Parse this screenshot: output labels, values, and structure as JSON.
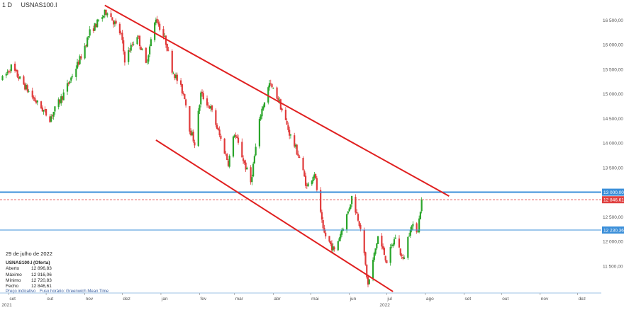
{
  "header": {
    "timeframe": "1 D",
    "symbol": "USNAS100.I"
  },
  "info_panel": {
    "date": "29 de julho de 2022",
    "instrument": "USNAS100.I (Oferta)",
    "rows": [
      {
        "label": "Aberto",
        "value": "12 896,83"
      },
      {
        "label": "Máximo",
        "value": "12 916,06"
      },
      {
        "label": "Mínimo",
        "value": "12 720,83"
      },
      {
        "label": "Fecho",
        "value": "12 846,61"
      }
    ],
    "footer": [
      "Preço indicativo",
      "Fuso horário: Greenwich Mean Time"
    ]
  },
  "colors": {
    "up": "#2aa52a",
    "down": "#e03b3b",
    "trendline": "#e02020",
    "hline_blue": "#3b8fd9",
    "price_dash": "#e04040",
    "axis_text": "#555555"
  },
  "chart_data": {
    "type": "candlestick",
    "instrument": "USNAS100.I",
    "timeframe": "1 D",
    "x_ticks": [
      {
        "label": "set",
        "date": "2021-09-01"
      },
      {
        "label": "out",
        "date": "2021-10-01"
      },
      {
        "label": "nov",
        "date": "2021-11-01"
      },
      {
        "label": "dez",
        "date": "2021-12-01"
      },
      {
        "label": "jan",
        "date": "2022-01-01"
      },
      {
        "label": "fev",
        "date": "2022-02-01"
      },
      {
        "label": "mar",
        "date": "2022-03-01"
      },
      {
        "label": "abr",
        "date": "2022-04-01"
      },
      {
        "label": "mai",
        "date": "2022-05-01"
      },
      {
        "label": "jun",
        "date": "2022-06-01"
      },
      {
        "label": "jul",
        "date": "2022-07-01"
      },
      {
        "label": "ago",
        "date": "2022-08-01"
      },
      {
        "label": "set",
        "date": "2022-09-01"
      },
      {
        "label": "out",
        "date": "2022-10-01"
      },
      {
        "label": "nov",
        "date": "2022-11-01"
      },
      {
        "label": "dez",
        "date": "2022-12-01"
      }
    ],
    "year_labels": [
      {
        "label": "2021",
        "date": "2021-09-01"
      },
      {
        "label": "2022",
        "date": "2022-07-01"
      }
    ],
    "x_range": [
      "2021-08-25",
      "2022-12-20"
    ],
    "y_range": [
      10950,
      16850
    ],
    "y_ticks": [
      {
        "value": 11500,
        "label": "11 500,00"
      },
      {
        "value": 12000,
        "label": "12 000,00"
      },
      {
        "value": 12500,
        "label": "12 500,00"
      },
      {
        "value": 13000,
        "label": "13 000,00"
      },
      {
        "value": 13500,
        "label": "13 500,00"
      },
      {
        "value": 14000,
        "label": "14 000,00"
      },
      {
        "value": 14500,
        "label": "14 500,00"
      },
      {
        "value": 15000,
        "label": "15 000,00"
      },
      {
        "value": 15500,
        "label": "15 500,00"
      },
      {
        "value": 16000,
        "label": "16 000,00"
      },
      {
        "value": 16500,
        "label": "16 500,00"
      }
    ],
    "horizontal_lines": [
      {
        "value": 13000,
        "label": "13 000,00",
        "color": "#3b8fd9",
        "width": 2
      },
      {
        "value": 12846.61,
        "label": "12 846,61",
        "color": "#e04040",
        "dashed": true
      },
      {
        "value": 12230.36,
        "label": "12 230,36",
        "color": "#3b8fd9",
        "width": 1
      }
    ],
    "trendlines": [
      {
        "from": {
          "date": "2021-11-17",
          "value": 16800
        },
        "to": {
          "date": "2022-08-20",
          "value": 12920
        }
      },
      {
        "from": {
          "date": "2021-12-28",
          "value": 14060
        },
        "to": {
          "date": "2022-07-06",
          "value": 10980
        }
      }
    ],
    "anchors": [
      {
        "date": "2021-08-27",
        "value": 15300
      },
      {
        "date": "2021-09-03",
        "value": 15550
      },
      {
        "date": "2021-09-21",
        "value": 14900
      },
      {
        "date": "2021-10-04",
        "value": 14500
      },
      {
        "date": "2021-10-15",
        "value": 15000
      },
      {
        "date": "2021-10-28",
        "value": 15700
      },
      {
        "date": "2021-11-05",
        "value": 16250
      },
      {
        "date": "2021-11-19",
        "value": 16700
      },
      {
        "date": "2021-11-30",
        "value": 16200
      },
      {
        "date": "2021-12-03",
        "value": 15700
      },
      {
        "date": "2021-12-13",
        "value": 16200
      },
      {
        "date": "2021-12-20",
        "value": 15600
      },
      {
        "date": "2021-12-28",
        "value": 16550
      },
      {
        "date": "2022-01-05",
        "value": 16050
      },
      {
        "date": "2022-01-10",
        "value": 15500
      },
      {
        "date": "2022-01-20",
        "value": 14950
      },
      {
        "date": "2022-01-24",
        "value": 14300
      },
      {
        "date": "2022-01-28",
        "value": 14000
      },
      {
        "date": "2022-02-02",
        "value": 15000
      },
      {
        "date": "2022-02-10",
        "value": 14700
      },
      {
        "date": "2022-02-24",
        "value": 13600
      },
      {
        "date": "2022-03-01",
        "value": 14200
      },
      {
        "date": "2022-03-14",
        "value": 13200
      },
      {
        "date": "2022-03-22",
        "value": 14600
      },
      {
        "date": "2022-03-29",
        "value": 15200
      },
      {
        "date": "2022-04-05",
        "value": 14900
      },
      {
        "date": "2022-04-14",
        "value": 14200
      },
      {
        "date": "2022-04-22",
        "value": 13700
      },
      {
        "date": "2022-04-28",
        "value": 13100
      },
      {
        "date": "2022-05-04",
        "value": 13400
      },
      {
        "date": "2022-05-11",
        "value": 12200
      },
      {
        "date": "2022-05-20",
        "value": 11800
      },
      {
        "date": "2022-05-31",
        "value": 12600
      },
      {
        "date": "2022-06-03",
        "value": 12900
      },
      {
        "date": "2022-06-10",
        "value": 12300
      },
      {
        "date": "2022-06-16",
        "value": 11100
      },
      {
        "date": "2022-06-24",
        "value": 12100
      },
      {
        "date": "2022-07-01",
        "value": 11600
      },
      {
        "date": "2022-07-08",
        "value": 12100
      },
      {
        "date": "2022-07-14",
        "value": 11600
      },
      {
        "date": "2022-07-20",
        "value": 12300
      },
      {
        "date": "2022-07-26",
        "value": 12250
      },
      {
        "date": "2022-07-29",
        "value": 12846.61
      }
    ]
  }
}
